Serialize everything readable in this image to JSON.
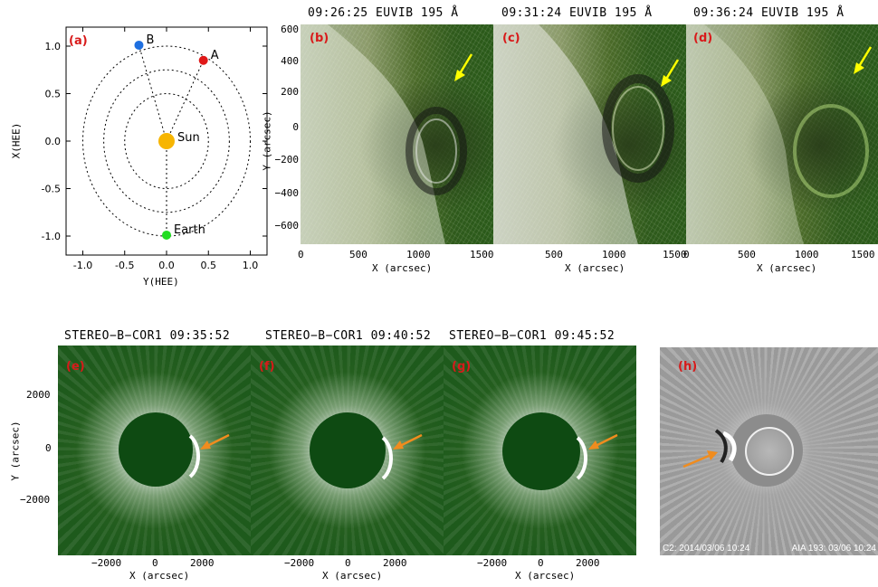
{
  "panel_a": {
    "letter": "(a)",
    "xlabel": "Y(HEE)",
    "ylabel": "X(HEE)",
    "xticks": [
      "-1.0",
      "-0.5",
      "0.0",
      "0.5",
      "1.0"
    ],
    "yticks": [
      "1.0",
      "0.5",
      "0.0",
      "-0.5",
      "-1.0"
    ],
    "points": [
      {
        "label": "B",
        "x": -0.33,
        "y": 1.01,
        "color": "#1e6fe0"
      },
      {
        "label": "A",
        "x": 0.44,
        "y": 0.85,
        "color": "#e01818"
      },
      {
        "label": "Sun",
        "x": 0.0,
        "y": 0.0,
        "color": "#f7b500"
      },
      {
        "label": "Earth",
        "x": 0.0,
        "y": -0.99,
        "color": "#22dd22"
      }
    ],
    "ring_radii": [
      0.5,
      0.75,
      1.0
    ]
  },
  "euvi": {
    "panels": [
      {
        "letter": "(b)",
        "title": "09:26:25 EUVIB 195 Å"
      },
      {
        "letter": "(c)",
        "title": "09:31:24 EUVIB 195 Å"
      },
      {
        "letter": "(d)",
        "title": "09:36:24 EUVIB 195 Å"
      }
    ],
    "xlabel": "X (arcsec)",
    "ylabel": "Y (arcsec)",
    "xticks": [
      "0",
      "500",
      "1000",
      "1500"
    ],
    "yticks": [
      "600",
      "400",
      "200",
      "0",
      "−200",
      "−400",
      "−600"
    ],
    "arrow_color": "#ffff00"
  },
  "cor1": {
    "panels": [
      {
        "letter": "(e)",
        "title": "STEREO−B−COR1 09:35:52"
      },
      {
        "letter": "(f)",
        "title": "STEREO−B−COR1 09:40:52"
      },
      {
        "letter": "(g)",
        "title": "STEREO−B−COR1 09:45:52"
      }
    ],
    "xlabel": "X (arcsec)",
    "ylabel": "Y (arcsec)",
    "xticks": [
      "−2000",
      "0",
      "2000"
    ],
    "yticks": [
      "2000",
      "0",
      "−2000"
    ],
    "arrow_color": "#f08c1e"
  },
  "panel_h": {
    "letter": "(h)",
    "caption_left": "C2: 2014/03/06 10:24",
    "caption_right": "AIA 193: 03/06 10:24",
    "arrow_color": "#f08c1e"
  }
}
